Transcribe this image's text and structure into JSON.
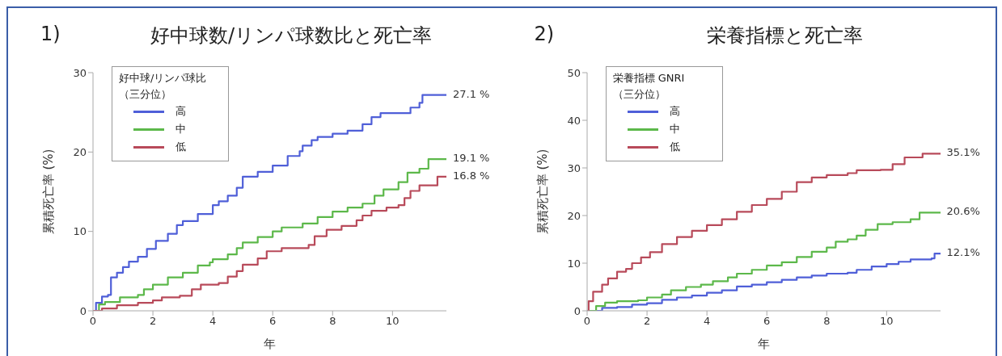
{
  "chart_data": [
    {
      "type": "step",
      "title": "好中球数/リンパ球数比と死亡率",
      "xlabel": "年",
      "ylabel": "累積死亡率 (%)",
      "legend_title": "好中球/リンパ球比（三分位）",
      "legend": "top left",
      "grid": false,
      "xlim": [
        0,
        11.8
      ],
      "xticks": [
        0,
        2,
        4,
        6,
        8,
        10
      ],
      "ylim": [
        0,
        30
      ],
      "yticks": [
        0,
        10,
        20,
        30
      ],
      "annotations": [
        "1)",
        "27.1 %",
        "19.1 %",
        "16.8 %"
      ],
      "series": [
        {
          "name": "高",
          "color": "#4f5fd8",
          "x": [
            0,
            0.1,
            0.3,
            0.5,
            0.6,
            0.8,
            1.0,
            1.2,
            1.5,
            1.8,
            2.1,
            2.5,
            2.8,
            3.0,
            3.5,
            4.0,
            4.2,
            4.5,
            4.8,
            5.0,
            5.5,
            6.0,
            6.5,
            6.9,
            7.0,
            7.3,
            7.5,
            8.0,
            8.5,
            9.0,
            9.3,
            9.6,
            10.6,
            10.9,
            11.0,
            11.8
          ],
          "values": [
            0,
            1,
            1.8,
            2,
            4.2,
            4.8,
            5.5,
            6.2,
            6.8,
            7.8,
            8.8,
            9.7,
            10.8,
            11.3,
            12.2,
            13.3,
            13.8,
            14.5,
            15.5,
            16.9,
            17.5,
            18.3,
            19.5,
            20.1,
            20.8,
            21.5,
            21.9,
            22.3,
            22.7,
            23.5,
            24.4,
            24.9,
            25.6,
            26.2,
            27.2,
            27.2
          ]
        },
        {
          "name": "中",
          "color": "#5cb84a",
          "x": [
            0,
            0.2,
            0.4,
            0.9,
            1.5,
            1.7,
            2.0,
            2.5,
            3.0,
            3.5,
            3.9,
            4.0,
            4.5,
            4.8,
            5.0,
            5.5,
            6.0,
            6.3,
            7.0,
            7.5,
            8.0,
            8.5,
            9.0,
            9.4,
            9.7,
            10.2,
            10.5,
            10.9,
            11.2,
            11.8
          ],
          "values": [
            0,
            0.8,
            1.1,
            1.7,
            2,
            2.7,
            3.3,
            4.2,
            4.8,
            5.7,
            6.1,
            6.5,
            7.1,
            7.9,
            8.6,
            9.3,
            10.0,
            10.5,
            11.0,
            11.8,
            12.5,
            13.0,
            13.5,
            14.5,
            15.3,
            16.2,
            17.4,
            17.9,
            19.1,
            19.1
          ]
        },
        {
          "name": "低",
          "color": "#b84a5a",
          "x": [
            0,
            0.3,
            0.8,
            1.5,
            2.0,
            2.3,
            2.9,
            3.3,
            3.6,
            4.2,
            4.5,
            4.8,
            5.0,
            5.5,
            5.8,
            6.3,
            7.2,
            7.4,
            7.8,
            8.3,
            8.8,
            9.0,
            9.3,
            9.8,
            10.2,
            10.4,
            10.6,
            10.9,
            11.5,
            11.8
          ],
          "values": [
            0,
            0.3,
            0.7,
            1.0,
            1.3,
            1.7,
            1.9,
            2.7,
            3.3,
            3.5,
            4.3,
            5.0,
            5.8,
            6.6,
            7.5,
            7.9,
            8.3,
            9.4,
            10.2,
            10.7,
            11.4,
            12.0,
            12.6,
            13.0,
            13.3,
            14.2,
            15.1,
            15.8,
            16.9,
            16.9
          ]
        }
      ]
    },
    {
      "type": "step",
      "title": "栄養指標と死亡率",
      "xlabel": "年",
      "ylabel": "累積死亡率 (%)",
      "legend_title": "栄養指標 GNRI（三分位）",
      "legend": "top left",
      "grid": false,
      "xlim": [
        0,
        11.8
      ],
      "xticks": [
        0,
        2,
        4,
        6,
        8,
        10
      ],
      "ylim": [
        0,
        50
      ],
      "yticks": [
        0,
        10,
        20,
        30,
        40,
        50
      ],
      "annotations": [
        "2)",
        "12.1%",
        "20.6%",
        "35.1%"
      ],
      "series": [
        {
          "name": "高",
          "color": "#4f5fd8",
          "x": [
            0,
            0.5,
            1.0,
            1.5,
            2.0,
            2.5,
            3.0,
            3.5,
            4.0,
            4.5,
            5.0,
            5.5,
            6.0,
            6.5,
            7.0,
            7.5,
            8.0,
            8.7,
            9.0,
            9.5,
            10.0,
            10.4,
            10.8,
            11.5,
            11.6,
            11.8
          ],
          "values": [
            0,
            0.6,
            0.8,
            1.3,
            1.6,
            2.3,
            2.8,
            3.2,
            3.8,
            4.3,
            5.1,
            5.5,
            6,
            6.5,
            7,
            7.4,
            7.8,
            8,
            8.6,
            9.3,
            9.8,
            10.3,
            10.8,
            11,
            12,
            12.1
          ]
        },
        {
          "name": "中",
          "color": "#5cb84a",
          "x": [
            0,
            0.3,
            0.6,
            1.0,
            1.7,
            2.0,
            2.5,
            2.8,
            3.3,
            3.8,
            4.2,
            4.7,
            5.0,
            5.5,
            6.0,
            6.5,
            7.0,
            7.5,
            8.0,
            8.3,
            8.7,
            9.0,
            9.3,
            9.7,
            10.2,
            10.8,
            11.1,
            11.8
          ],
          "values": [
            0,
            1,
            1.7,
            2,
            2.2,
            2.8,
            3.4,
            4.3,
            5,
            5.5,
            6.2,
            7,
            7.8,
            8.6,
            9.5,
            10.2,
            11.3,
            12.4,
            13.3,
            14.5,
            15,
            15.8,
            17,
            18.2,
            18.6,
            19.2,
            20.6,
            20.6
          ]
        },
        {
          "name": "低",
          "color": "#b84a5a",
          "x": [
            0,
            0.05,
            0.2,
            0.5,
            0.7,
            1.0,
            1.3,
            1.5,
            1.8,
            2.1,
            2.5,
            3.0,
            3.5,
            4.0,
            4.5,
            5.0,
            5.5,
            6.0,
            6.5,
            7.0,
            7.5,
            8.0,
            8.7,
            9.0,
            9.8,
            10.2,
            10.6,
            11.2,
            11.8
          ],
          "values": [
            0,
            2,
            4,
            5.5,
            6.8,
            8.2,
            8.8,
            10,
            11.2,
            12.3,
            14,
            15.5,
            16.8,
            18,
            19.2,
            20.8,
            22.2,
            23.5,
            25,
            27,
            28,
            28.5,
            28.9,
            29.5,
            29.6,
            30.8,
            32.2,
            33,
            33
          ]
        }
      ]
    }
  ]
}
